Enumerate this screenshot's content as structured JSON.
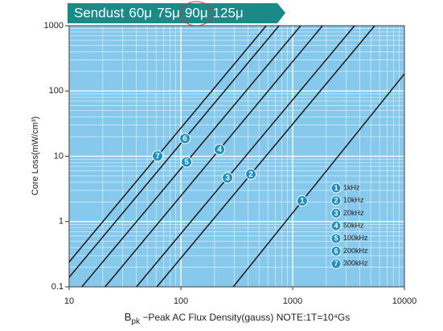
{
  "chart_data": {
    "type": "line",
    "title_parts": [
      "Sendust",
      "60μ",
      "75μ",
      "90μ",
      "125μ"
    ],
    "highlight_index": 3,
    "y_label": "Core Loss(mW/cm³)",
    "x_label_main": "B",
    "x_label_sub": "pk",
    "x_label_rest": " −Peak AC Flux Density(gauss)  NOTE:1T=10⁴Gs",
    "xscale": "log",
    "yscale": "log",
    "grid": true,
    "xlim": [
      10,
      10000
    ],
    "ylim": [
      0.1,
      1000
    ],
    "xticks": [
      10,
      100,
      1000,
      10000
    ],
    "yticks": [
      0.1,
      1,
      10,
      100,
      1000
    ],
    "line_color": "#1a1a1a",
    "marker_color": "#1d8fc4",
    "background": "#86c9ec",
    "series": [
      {
        "name": "1kHz",
        "label": "1",
        "x": [
          294,
          10000
        ],
        "values": [
          0.1,
          183
        ]
      },
      {
        "name": "10kHz",
        "label": "2",
        "x": [
          61,
          5420
        ],
        "values": [
          0.1,
          1000
        ]
      },
      {
        "name": "20kHz",
        "label": "3",
        "x": [
          40,
          3580
        ],
        "values": [
          0.1,
          1000
        ]
      },
      {
        "name": "50kHz",
        "label": "4",
        "x": [
          21,
          1850
        ],
        "values": [
          0.1,
          1000
        ]
      },
      {
        "name": "100kHz",
        "label": "5",
        "x": [
          13,
          1180
        ],
        "values": [
          0.1,
          1000
        ]
      },
      {
        "name": "200kHz",
        "label": "6",
        "x": [
          10,
          755
        ],
        "values": [
          0.14,
          1000
        ]
      },
      {
        "name": "300kHz",
        "label": "7",
        "x": [
          10,
          580
        ],
        "values": [
          0.24,
          1000
        ]
      }
    ]
  }
}
